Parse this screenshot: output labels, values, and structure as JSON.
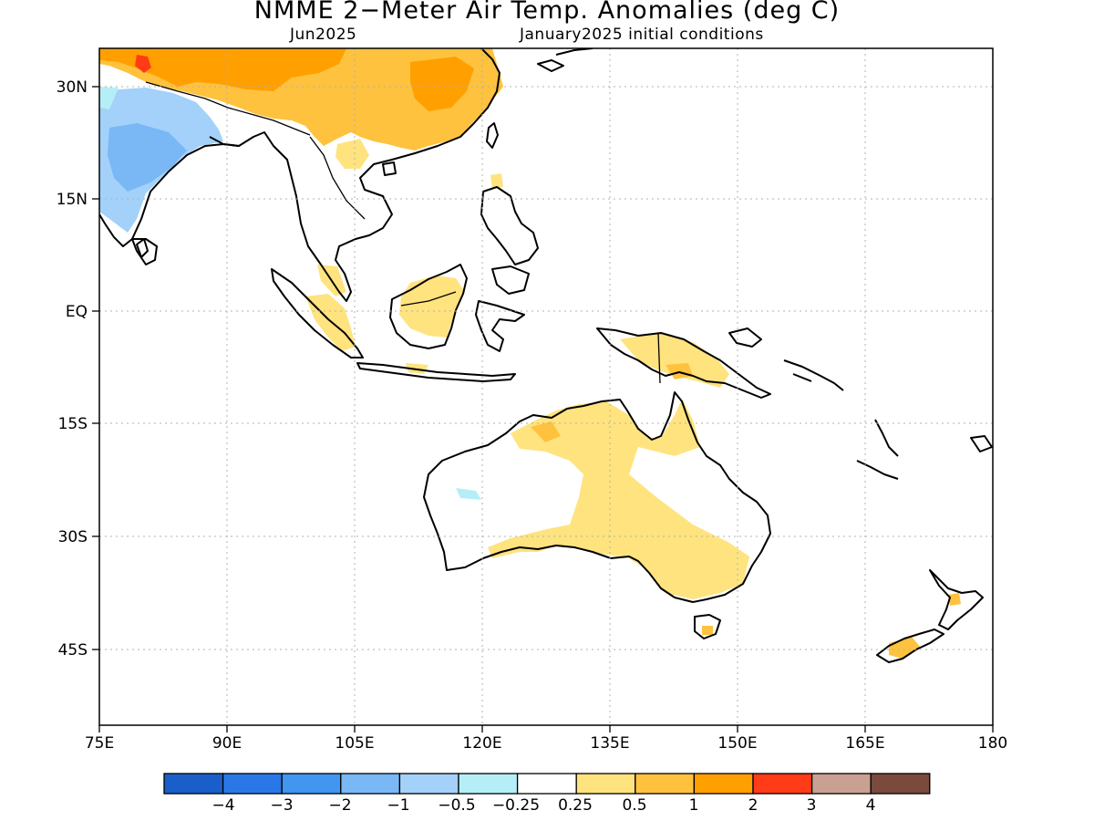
{
  "title": "NMME 2−Meter Air Temp. Anomalies (deg C)",
  "subtitle_left": "Jun2025",
  "subtitle_right": "January2025 initial conditions",
  "lat_ticks": [
    "30N",
    "15N",
    "EQ",
    "15S",
    "30S",
    "45S"
  ],
  "lon_ticks": [
    "75E",
    "90E",
    "105E",
    "120E",
    "135E",
    "150E",
    "165E",
    "180"
  ],
  "colorbar": {
    "colors": [
      "#1a5fc9",
      "#2a78e8",
      "#4196ef",
      "#7ab7f5",
      "#a3d1fa",
      "#b6eef8",
      "#ffffff",
      "#ffe37f",
      "#ffc23e",
      "#ffa000",
      "#ff3b18",
      "#c9a091",
      "#7a4a3c"
    ],
    "labels": [
      "−4",
      "−3",
      "−2",
      "−1",
      "−0.5",
      "−0.25",
      "0.25",
      "0.5",
      "1",
      "2",
      "3",
      "4"
    ]
  },
  "regions": [
    {
      "name": "china-warm",
      "color": "#ffc23e"
    },
    {
      "name": "tibet-hot",
      "color": "#ffa000"
    },
    {
      "name": "india-cool",
      "color": "#a3d1fa"
    },
    {
      "name": "australia-warm",
      "color": "#ffe37f"
    }
  ]
}
